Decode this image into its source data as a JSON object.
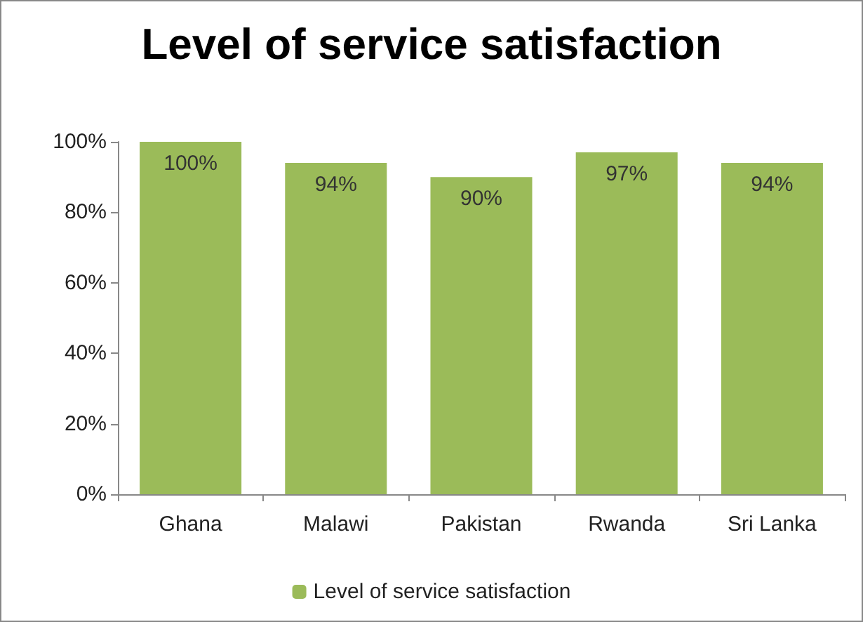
{
  "chart_data": {
    "type": "bar",
    "title": "Level of service satisfaction",
    "categories": [
      "Ghana",
      "Malawi",
      "Pakistan",
      "Rwanda",
      "Sri Lanka"
    ],
    "series": [
      {
        "name": "Level of service satisfaction",
        "color": "#9bbb59",
        "values": [
          100,
          94,
          90,
          97,
          94
        ],
        "value_labels": [
          "100%",
          "94%",
          "90%",
          "97%",
          "94%"
        ]
      }
    ],
    "ylim": [
      0,
      100
    ],
    "yticks": [
      {
        "value": 0,
        "label": "0%"
      },
      {
        "value": 20,
        "label": "20%"
      },
      {
        "value": 40,
        "label": "40%"
      },
      {
        "value": 60,
        "label": "60%"
      },
      {
        "value": 80,
        "label": "80%"
      },
      {
        "value": 100,
        "label": "100%"
      }
    ],
    "grid": false,
    "legend": "bottom"
  }
}
